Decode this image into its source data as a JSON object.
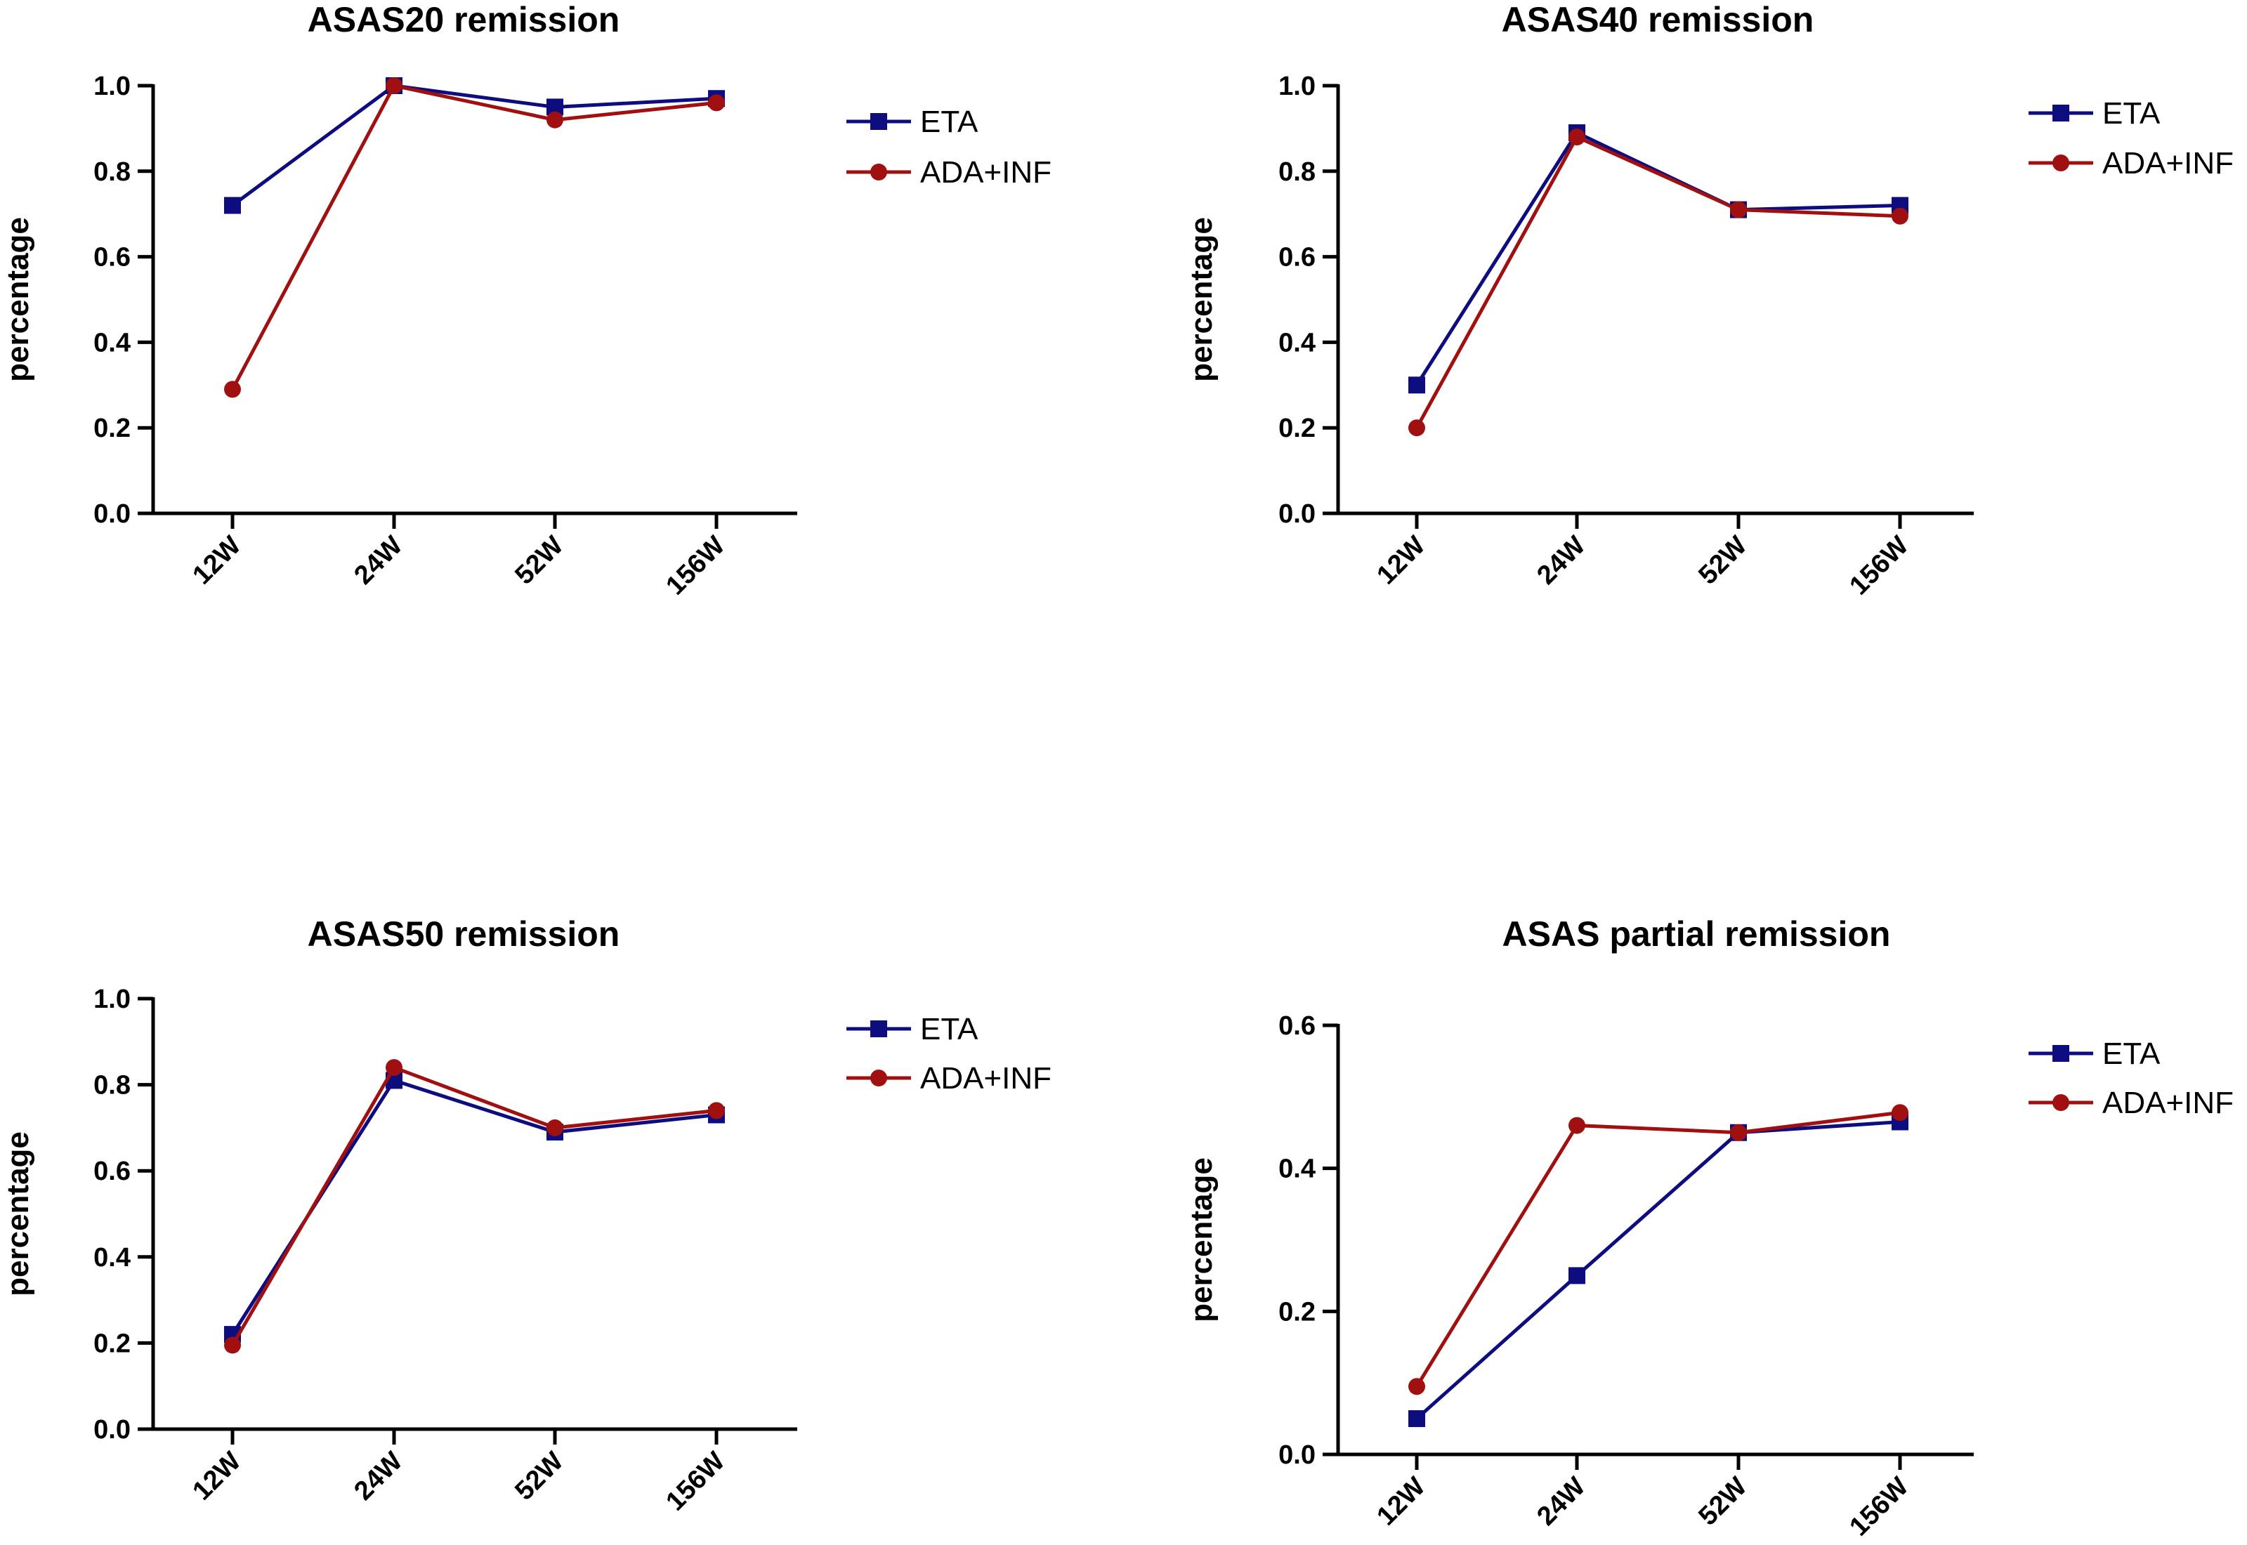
{
  "colors": {
    "ETA": "#0d0d80",
    "ADA+INF": "#a01010"
  },
  "chart_data": [
    {
      "type": "line",
      "title": "ASAS20 remission",
      "xlabel": "",
      "ylabel": "percentage",
      "categories": [
        "12W",
        "24W",
        "52W",
        "156W"
      ],
      "ylim": [
        0,
        1.0
      ],
      "yticks": [
        "0.0",
        "0.2",
        "0.4",
        "0.6",
        "0.8",
        "1.0"
      ],
      "grid": false,
      "legend_position": "right",
      "series": [
        {
          "name": "ETA",
          "marker": "square",
          "values": [
            0.72,
            1.0,
            0.95,
            0.97
          ]
        },
        {
          "name": "ADA+INF",
          "marker": "circle",
          "values": [
            0.29,
            1.0,
            0.92,
            0.96
          ]
        }
      ]
    },
    {
      "type": "line",
      "title": "ASAS40 remission",
      "xlabel": "",
      "ylabel": "percentage",
      "categories": [
        "12W",
        "24W",
        "52W",
        "156W"
      ],
      "ylim": [
        0,
        1.0
      ],
      "yticks": [
        "0.0",
        "0.2",
        "0.4",
        "0.6",
        "0.8",
        "1.0"
      ],
      "grid": false,
      "legend_position": "right",
      "series": [
        {
          "name": "ETA",
          "marker": "square",
          "values": [
            0.3,
            0.89,
            0.71,
            0.72
          ]
        },
        {
          "name": "ADA+INF",
          "marker": "circle",
          "values": [
            0.2,
            0.88,
            0.71,
            0.695
          ]
        }
      ]
    },
    {
      "type": "line",
      "title": "ASAS50 remission",
      "xlabel": "",
      "ylabel": "percentage",
      "categories": [
        "12W",
        "24W",
        "52W",
        "156W"
      ],
      "ylim": [
        0,
        1.0
      ],
      "yticks": [
        "0.0",
        "0.2",
        "0.4",
        "0.6",
        "0.8",
        "1.0"
      ],
      "grid": false,
      "legend_position": "right",
      "series": [
        {
          "name": "ETA",
          "marker": "square",
          "values": [
            0.22,
            0.81,
            0.69,
            0.73
          ]
        },
        {
          "name": "ADA+INF",
          "marker": "circle",
          "values": [
            0.195,
            0.84,
            0.7,
            0.74
          ]
        }
      ]
    },
    {
      "type": "line",
      "title": "ASAS partial remission",
      "xlabel": "",
      "ylabel": "percentage",
      "categories": [
        "12W",
        "24W",
        "52W",
        "156W"
      ],
      "ylim": [
        0,
        0.6
      ],
      "yticks": [
        "0.0",
        "0.2",
        "0.4",
        "0.6"
      ],
      "grid": false,
      "legend_position": "right",
      "series": [
        {
          "name": "ETA",
          "marker": "square",
          "values": [
            0.05,
            0.25,
            0.45,
            0.465
          ]
        },
        {
          "name": "ADA+INF",
          "marker": "circle",
          "values": [
            0.095,
            0.46,
            0.45,
            0.478
          ]
        }
      ]
    }
  ]
}
